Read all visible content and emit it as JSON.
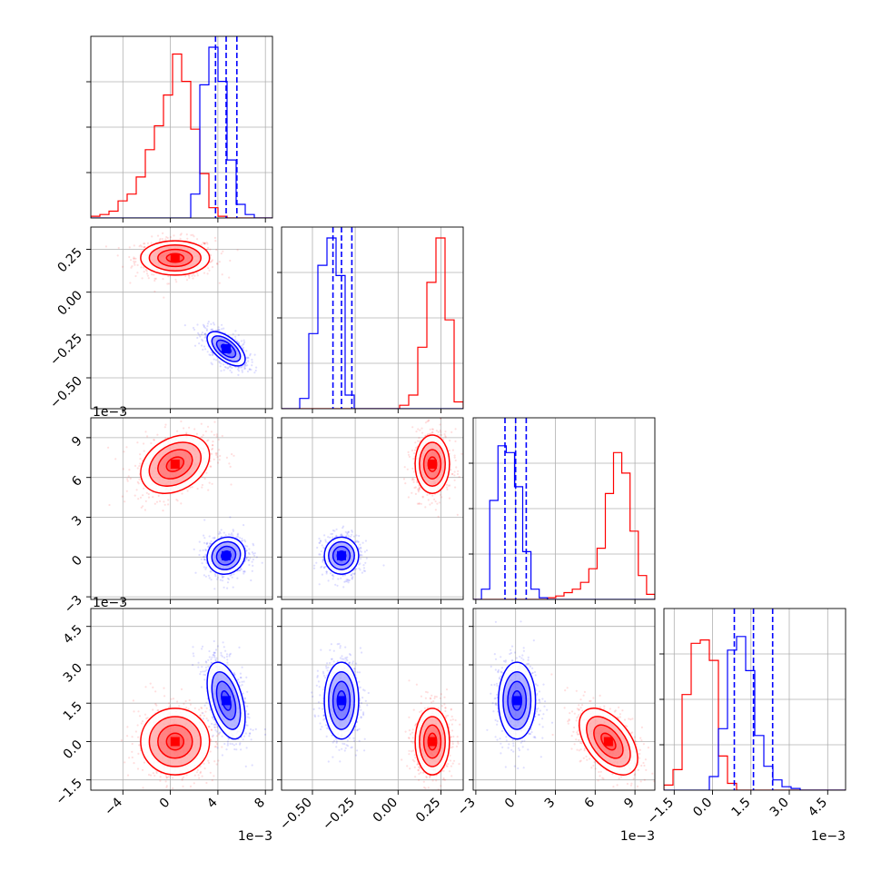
{
  "colors": {
    "series_a": "#ff0000",
    "series_b": "#0000ff",
    "grid": "#b0b0b0",
    "axes": "#000000"
  },
  "chart_data": {
    "type": "corner",
    "grid": true,
    "parameters": [
      {
        "range": [
          -6.7,
          8.6
        ],
        "ticks": [
          -4,
          0,
          4,
          8
        ],
        "tick_labels": [
          "−4",
          "0",
          "4",
          "8"
        ],
        "offset_label": "1e−3"
      },
      {
        "range": [
          -0.68,
          0.38
        ],
        "ticks": [
          -0.5,
          -0.25,
          0.0,
          0.25
        ],
        "tick_labels": [
          "−0.50",
          "−0.25",
          "0.00",
          "0.25"
        ],
        "offset_label": ""
      },
      {
        "range": [
          -3.2,
          10.5
        ],
        "ticks": [
          -3,
          0,
          3,
          6,
          9
        ],
        "tick_labels": [
          "−3",
          "0",
          "3",
          "6",
          "9"
        ],
        "offset_label": "1e−3"
      },
      {
        "range": [
          -1.9,
          5.2
        ],
        "ticks": [
          -1.5,
          0.0,
          1.5,
          3.0,
          4.5
        ],
        "tick_labels": [
          "−1.5",
          "0.0",
          "1.5",
          "3.0",
          "4.5"
        ],
        "offset_label": "1e−3"
      }
    ],
    "series": [
      {
        "color": "red",
        "means": [
          0.4,
          0.2,
          7.0,
          0.0
        ],
        "stds": [
          1.45,
          0.05,
          1.1,
          0.65
        ],
        "correlations": {
          "1-0": 0.0,
          "2-0": 0.3,
          "2-1": 0.0,
          "3-0": 0.0,
          "3-1": 0.0,
          "3-2": -0.5
        },
        "histograms": [
          [
            0.01,
            0.02,
            0.04,
            0.1,
            0.14,
            0.24,
            0.4,
            0.54,
            0.72,
            0.96,
            0.8,
            0.52,
            0.26,
            0.06,
            0.01,
            0,
            0,
            0,
            0,
            0
          ],
          [
            0,
            0,
            0,
            0,
            0,
            0,
            0,
            0,
            0,
            0,
            0,
            0,
            0,
            0.02,
            0.08,
            0.36,
            0.74,
            1.0,
            0.52,
            0.04
          ],
          [
            0,
            0,
            0,
            0,
            0,
            0,
            0,
            0,
            0,
            0.01,
            0.02,
            0.04,
            0.06,
            0.1,
            0.18,
            0.3,
            0.62,
            0.86,
            0.74,
            0.4,
            0.14,
            0.03
          ],
          [
            0.03,
            0.12,
            0.56,
            0.86,
            0.88,
            0.76,
            0.2,
            0.04,
            0,
            0,
            0,
            0,
            0,
            0,
            0,
            0,
            0,
            0,
            0,
            0
          ]
        ]
      },
      {
        "color": "blue",
        "means": [
          4.7,
          -0.33,
          0.1,
          1.6
        ],
        "stds": [
          0.8,
          0.05,
          0.7,
          0.75
        ],
        "correlations": {
          "1-0": -0.6,
          "2-0": 0.1,
          "2-1": 0.0,
          "3-0": -0.45,
          "3-1": 0.0,
          "3-2": 0.0
        },
        "quantile_lines": [
          [
            3.8,
            4.7,
            5.6
          ],
          [
            -0.38,
            -0.33,
            -0.27
          ],
          [
            -0.8,
            0.0,
            0.8
          ],
          [
            0.85,
            1.6,
            2.35
          ]
        ],
        "histograms": [
          [
            0,
            0,
            0,
            0,
            0,
            0,
            0,
            0,
            0,
            0,
            0,
            0.14,
            0.78,
            1.0,
            0.8,
            0.34,
            0.08,
            0.02,
            0,
            0
          ],
          [
            0,
            0,
            0.06,
            0.44,
            0.84,
            1.0,
            0.78,
            0.08,
            0,
            0,
            0,
            0,
            0,
            0,
            0,
            0,
            0,
            0,
            0,
            0
          ],
          [
            0,
            0.06,
            0.58,
            0.9,
            0.86,
            0.66,
            0.28,
            0.06,
            0.01,
            0,
            0,
            0,
            0,
            0,
            0,
            0,
            0,
            0,
            0,
            0,
            0,
            0
          ],
          [
            0,
            0,
            0,
            0,
            0,
            0.08,
            0.36,
            0.82,
            0.9,
            0.7,
            0.32,
            0.14,
            0.06,
            0.02,
            0.01,
            0,
            0,
            0,
            0,
            0
          ]
        ]
      }
    ]
  }
}
